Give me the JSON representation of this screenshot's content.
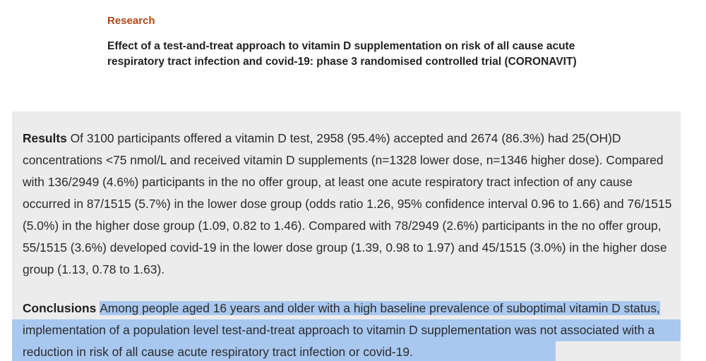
{
  "article": {
    "section": "Research",
    "title": "Effect of a test-and-treat approach to vitamin D supplementation on risk of all cause acute respiratory tract infection and covid-19: phase 3 randomised controlled trial (CORONAVIT)"
  },
  "abstract": {
    "results": {
      "heading": "Results",
      "text": "Of 3100 participants offered a vitamin D test, 2958 (95.4%) accepted and 2674 (86.3%) had 25(OH)D concentrations <75 nmol/L and received vitamin D supplements (n=1328 lower dose, n=1346 higher dose). Compared with 136/2949 (4.6%) participants in the no offer group, at least one acute respiratory tract infection of any cause occurred in 87/1515 (5.7%) in the lower dose group (odds ratio 1.26, 95% confidence interval 0.96 to 1.66) and 76/1515 (5.0%) in the higher dose group (1.09, 0.82 to 1.46). Compared with 78/2949 (2.6%) participants in the no offer group, 55/1515 (3.6%) developed covid-19 in the lower dose group (1.39, 0.98 to 1.97) and 45/1515 (3.0%) in the higher dose group (1.13, 0.78 to 1.63)."
    },
    "conclusions": {
      "heading": "Conclusions",
      "text": "Among people aged 16 years and older with a high baseline prevalence of suboptimal vitamin D status, implementation of a population level test-and-treat approach to vitamin D supplementation was not associated with a reduction in risk of all cause acute respiratory tract infection or covid-19."
    }
  },
  "colors": {
    "section_label": "#b0461b",
    "abstract_background": "#ececec",
    "selection_highlight": "#a9c8f0"
  }
}
